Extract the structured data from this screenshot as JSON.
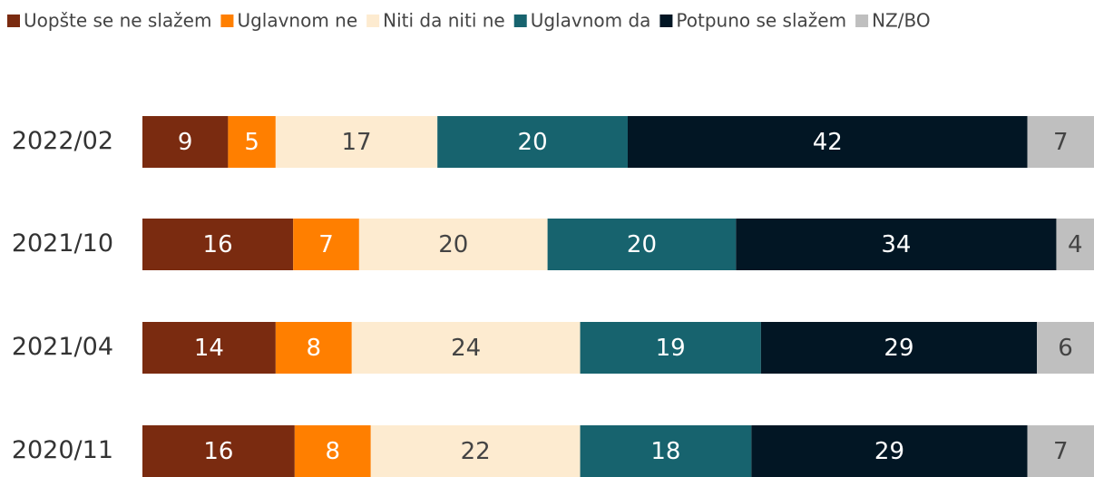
{
  "chart_data": {
    "type": "stacked-bar-horizontal",
    "categories": [
      "2022/02",
      "2021/10",
      "2021/04",
      "2020/11"
    ],
    "series": [
      {
        "name": "Uopšte se ne slažem",
        "color": "#7a2b10",
        "values": [
          9,
          16,
          14,
          16
        ]
      },
      {
        "name": "Uglavnom ne",
        "color": "#ff7f00",
        "values": [
          5,
          7,
          8,
          8
        ]
      },
      {
        "name": "Niti da niti ne",
        "color": "#fdebd0",
        "values": [
          17,
          20,
          24,
          22
        ]
      },
      {
        "name": "Uglavnom da",
        "color": "#17636e",
        "values": [
          20,
          20,
          19,
          18
        ]
      },
      {
        "name": "Potpuno se slažem",
        "color": "#021624",
        "values": [
          42,
          34,
          29,
          29
        ]
      },
      {
        "name": "NZ/BO",
        "color": "#bfbfbf",
        "values": [
          7,
          4,
          6,
          7
        ]
      }
    ],
    "legend": "top"
  }
}
